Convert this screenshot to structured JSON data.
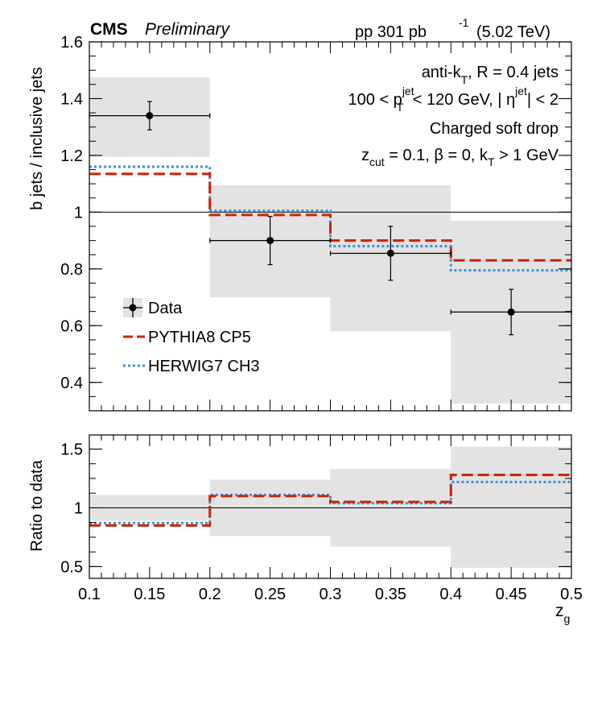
{
  "header": {
    "experiment": "CMS",
    "status": "Preliminary",
    "lumi_prefix": "pp 301 pb",
    "lumi_exp": "-1",
    "energy": "(5.02 TeV)"
  },
  "annotations": {
    "line1_a": "anti-k",
    "line1_sub": "T",
    "line1_b": ", R = 0.4 jets",
    "line2_a": "100 < p",
    "line2_sup": "jet",
    "line2_sub": "T",
    "line2_b": " < 120 GeV, |",
    "line2_eta": " η",
    "line2_eta_sup": "jet",
    "line2_c": "| < 2",
    "line3": "Charged soft drop",
    "line4_z": "z",
    "line4_zsub": "cut",
    "line4_b": " = 0.1,  β = 0, k",
    "line4_ksub": "T",
    "line4_c": " > 1 GeV"
  },
  "colors": {
    "data": "#000000",
    "pythia": "#cc2200",
    "herwig": "#3b8fd9",
    "band": "#e3e3e3",
    "reference": "#000000"
  },
  "chart_data": [
    {
      "type": "line",
      "panel": "main",
      "xlabel": "",
      "ylabel": "b jets / inclusive jets",
      "xlim": [
        0.1,
        0.5
      ],
      "ylim": [
        0.3,
        1.6
      ],
      "bins": [
        [
          0.1,
          0.2
        ],
        [
          0.2,
          0.3
        ],
        [
          0.3,
          0.4
        ],
        [
          0.4,
          0.5
        ]
      ],
      "yticks": [
        "0.4",
        "0.6",
        "0.8",
        "1",
        "1.2",
        "1.4",
        "1.6"
      ],
      "ytick_values": [
        0.4,
        0.6,
        0.8,
        1.0,
        1.2,
        1.4,
        1.6
      ],
      "reference_line": 1.0,
      "legend_position": "left",
      "series": [
        {
          "name": "Data",
          "style": "points",
          "x": [
            0.15,
            0.25,
            0.35,
            0.45
          ],
          "values": [
            1.34,
            0.9,
            0.855,
            0.648
          ],
          "stat_err": [
            0.05,
            0.085,
            0.095,
            0.08
          ],
          "syst_band": [
            [
              1.195,
              1.475
            ],
            [
              0.7,
              1.095
            ],
            [
              0.58,
              1.095
            ],
            [
              0.325,
              0.97
            ]
          ]
        },
        {
          "name": "PYTHIA8 CP5",
          "style": "dashed-step",
          "values": [
            1.135,
            0.99,
            0.9,
            0.83
          ]
        },
        {
          "name": "HERWIG7 CH3",
          "style": "dotted-step",
          "values": [
            1.16,
            1.005,
            0.88,
            0.795
          ]
        }
      ]
    },
    {
      "type": "line",
      "panel": "ratio",
      "xlabel": "z",
      "xlabel_sub": "g",
      "ylabel": "Ratio to data",
      "xlim": [
        0.1,
        0.5
      ],
      "ylim": [
        0.4,
        1.62
      ],
      "bins": [
        [
          0.1,
          0.2
        ],
        [
          0.2,
          0.3
        ],
        [
          0.3,
          0.4
        ],
        [
          0.4,
          0.5
        ]
      ],
      "xticks": [
        "0.1",
        "0.15",
        "0.2",
        "0.25",
        "0.3",
        "0.35",
        "0.4",
        "0.45",
        "0.5"
      ],
      "xtick_values": [
        0.1,
        0.15,
        0.2,
        0.25,
        0.3,
        0.35,
        0.4,
        0.45,
        0.5
      ],
      "yticks": [
        "0.5",
        "1",
        "1.5"
      ],
      "ytick_values": [
        0.5,
        1.0,
        1.5
      ],
      "reference_line": 1.0,
      "series": [
        {
          "name": "Data",
          "style": "band",
          "band": [
            [
              0.89,
              1.11
            ],
            [
              0.76,
              1.24
            ],
            [
              0.67,
              1.33
            ],
            [
              0.49,
              1.52
            ]
          ]
        },
        {
          "name": "PYTHIA8 CP5",
          "style": "dashed-step",
          "values": [
            0.85,
            1.1,
            1.05,
            1.28
          ]
        },
        {
          "name": "HERWIG7 CH3",
          "style": "dotted-step",
          "values": [
            0.87,
            1.11,
            1.04,
            1.22
          ]
        }
      ]
    }
  ]
}
